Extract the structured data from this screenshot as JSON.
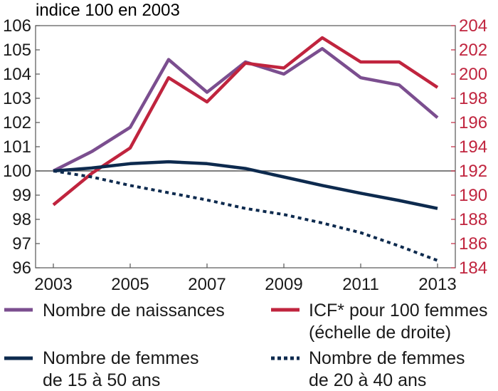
{
  "chart_data": {
    "type": "line",
    "title": "",
    "left_axis_caption": "indice 100 en 2003",
    "x": [
      2003,
      2004,
      2005,
      2006,
      2007,
      2008,
      2009,
      2010,
      2011,
      2012,
      2013
    ],
    "x_ticks": [
      2003,
      2005,
      2007,
      2009,
      2011,
      2013
    ],
    "x_tick_labels": [
      "2003",
      "2005",
      "2007",
      "2009",
      "2011",
      "2013"
    ],
    "ylim_left": [
      96,
      106
    ],
    "y_ticks_left": [
      "96",
      "97",
      "98",
      "99",
      "100",
      "101",
      "102",
      "103",
      "104",
      "105",
      "106"
    ],
    "ylim_right": [
      184,
      204
    ],
    "y_ticks_right": [
      "184",
      "186",
      "188",
      "190",
      "192",
      "194",
      "196",
      "198",
      "200",
      "202",
      "204"
    ],
    "reference_line": 100,
    "grid": false,
    "legend_position": "bottom",
    "series": [
      {
        "name": "Nombre de naissances",
        "axis": "left",
        "color": "#7b4e8f",
        "style": "solid",
        "values": [
          100,
          100.8,
          101.8,
          104.6,
          103.25,
          104.5,
          104.0,
          105.05,
          103.85,
          103.55,
          102.2
        ]
      },
      {
        "name": "ICF* pour 100 femmes",
        "name_line2": "(échelle de droite)",
        "axis": "right",
        "color": "#c0243e",
        "style": "solid",
        "values": [
          189.2,
          191.8,
          193.9,
          199.7,
          197.7,
          200.9,
          200.5,
          203.0,
          201.0,
          201.0,
          198.9
        ]
      },
      {
        "name": "Nombre de femmes",
        "name_line2": "de 15 à 50 ans",
        "axis": "left",
        "color": "#0d2a4e",
        "style": "solid",
        "values": [
          100,
          100.12,
          100.3,
          100.38,
          100.3,
          100.1,
          99.75,
          99.4,
          99.08,
          98.78,
          98.45
        ]
      },
      {
        "name": "Nombre de femmes",
        "name_line2": "de 20 à 40 ans",
        "axis": "left",
        "color": "#0d2a4e",
        "style": "dotted",
        "values": [
          100,
          99.75,
          99.4,
          99.1,
          98.8,
          98.45,
          98.2,
          97.85,
          97.45,
          96.9,
          96.3
        ]
      }
    ],
    "colors": {
      "left_axis": "#1a1a1a",
      "right_axis": "#c0243e",
      "frame": "#555555"
    }
  }
}
